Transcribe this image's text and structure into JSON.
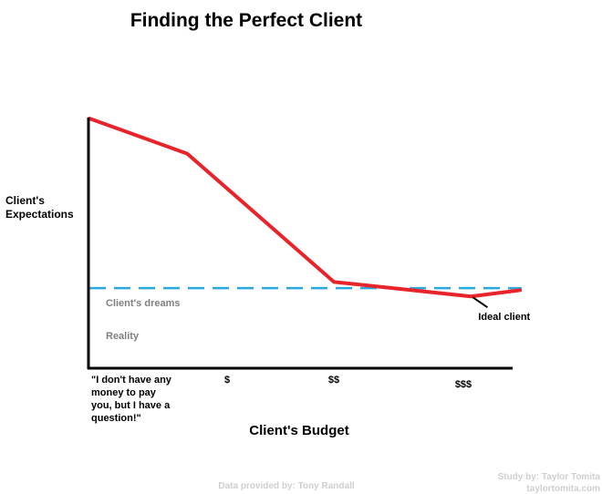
{
  "chart_data": {
    "type": "line",
    "title": "Finding the Perfect Client",
    "ylabel_lines": [
      "Client's",
      "Expectations"
    ],
    "xlabel": "Client's Budget",
    "categories": [
      "\"I don't have any money to pay you, but I have a question!\"",
      "$",
      "$$",
      "$$$"
    ],
    "category_lines": [
      [
        "\"I don't have any",
        "money to pay",
        "you, but I have a",
        "question!\""
      ],
      [
        "$"
      ],
      [
        "$$"
      ],
      [
        "$$$"
      ]
    ],
    "x_range": [
      0,
      4.4
    ],
    "y_range": [
      0,
      10
    ],
    "series": [
      {
        "color": "#e8242b",
        "x": [
          0,
          1,
          2.5,
          3.9,
          4.4
        ],
        "y": [
          10,
          8.3,
          2.1,
          1.4,
          1.7
        ]
      }
    ],
    "reference_line": {
      "y": 1.8,
      "color": "#29a9e0",
      "style": "dashed"
    },
    "zone_labels": {
      "above": "Client's dreams",
      "below": "Reality"
    },
    "annotation": {
      "text": "Ideal client",
      "target_x": 3.9,
      "target_y": 1.4
    },
    "grid": false,
    "legend": "none"
  },
  "credits": {
    "data_source": "Data provided by: Tony Randall",
    "study": "Study by: Taylor Tomita",
    "website": "taylortomita.com"
  }
}
